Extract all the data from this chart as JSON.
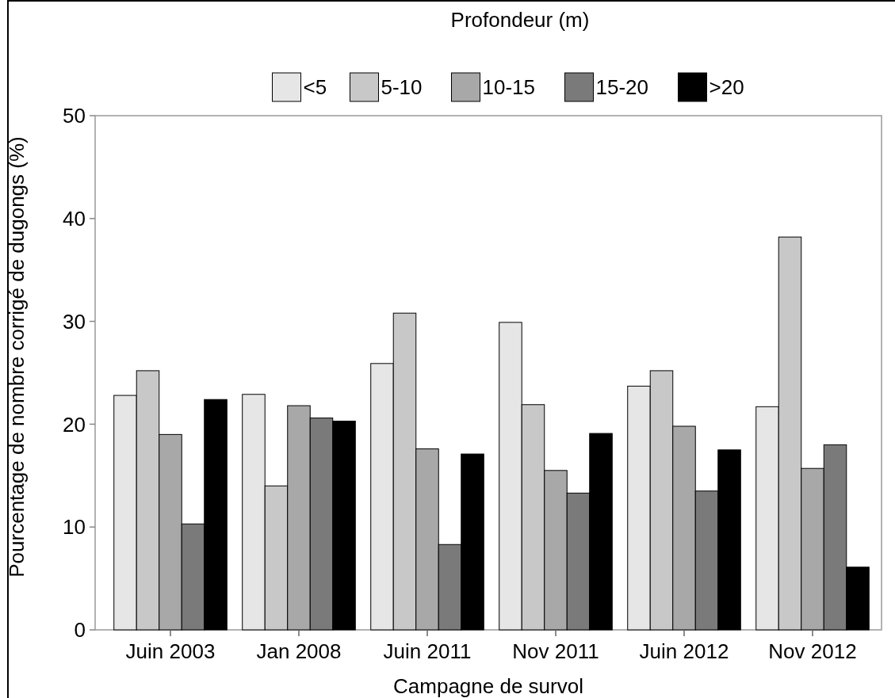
{
  "chart_data": {
    "type": "bar",
    "legend_title": "Profondeur (m)",
    "xlabel": "Campagne de survol",
    "ylabel": "Pourcentage de nombre corrigé de dugongs (%)",
    "categories": [
      "Juin 2003",
      "Jan 2008",
      "Juin 2011",
      "Nov 2011",
      "Juin 2012",
      "Nov 2012"
    ],
    "series": [
      {
        "name": "<5",
        "color": "#e6e6e6",
        "values": [
          22.8,
          22.9,
          25.9,
          29.9,
          23.7,
          21.7
        ]
      },
      {
        "name": "5-10",
        "color": "#c8c8c8",
        "values": [
          25.2,
          14.0,
          30.8,
          21.9,
          25.2,
          38.2
        ]
      },
      {
        "name": "10-15",
        "color": "#a8a8a8",
        "values": [
          19.0,
          21.8,
          17.6,
          15.5,
          19.8,
          15.7
        ]
      },
      {
        "name": "15-20",
        "color": "#7a7a7a",
        "values": [
          10.3,
          20.6,
          8.3,
          13.3,
          13.5,
          18.0
        ]
      },
      {
        "name": ">20",
        "color": "#000000",
        "values": [
          22.4,
          20.3,
          17.1,
          19.1,
          17.5,
          6.1
        ]
      }
    ],
    "ylim": [
      0,
      50
    ],
    "yticks": [
      0,
      10,
      20,
      30,
      40,
      50
    ],
    "grid": false,
    "legend": "top"
  }
}
